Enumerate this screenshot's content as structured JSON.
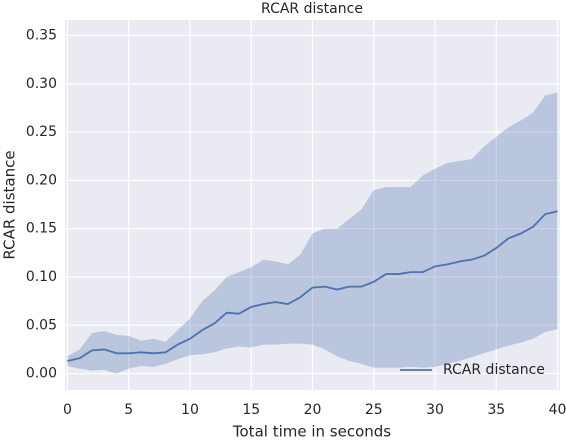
{
  "chart_data": {
    "type": "line",
    "title": "RCAR distance",
    "x_label": "Total time in seconds",
    "y_label": "RCAR distance",
    "x": [
      0,
      1,
      2,
      3,
      4,
      5,
      6,
      7,
      8,
      9,
      10,
      11,
      12,
      13,
      14,
      15,
      16,
      17,
      18,
      19,
      20,
      21,
      22,
      23,
      24,
      25,
      26,
      27,
      28,
      29,
      30,
      31,
      32,
      33,
      34,
      35,
      36,
      37,
      38,
      39,
      40
    ],
    "series": [
      {
        "name": "RCAR distance",
        "color": "#4c72b0",
        "values": [
          0.013,
          0.016,
          0.024,
          0.025,
          0.021,
          0.021,
          0.022,
          0.021,
          0.022,
          0.03,
          0.036,
          0.045,
          0.052,
          0.063,
          0.062,
          0.069,
          0.072,
          0.074,
          0.072,
          0.079,
          0.089,
          0.09,
          0.087,
          0.09,
          0.09,
          0.095,
          0.103,
          0.103,
          0.105,
          0.105,
          0.111,
          0.113,
          0.116,
          0.118,
          0.122,
          0.13,
          0.14,
          0.145,
          0.152,
          0.165,
          0.168
        ],
        "upper": [
          0.018,
          0.025,
          0.042,
          0.044,
          0.04,
          0.039,
          0.034,
          0.036,
          0.033,
          0.045,
          0.057,
          0.075,
          0.086,
          0.1,
          0.105,
          0.11,
          0.118,
          0.116,
          0.113,
          0.123,
          0.145,
          0.15,
          0.15,
          0.16,
          0.17,
          0.19,
          0.193,
          0.193,
          0.193,
          0.205,
          0.212,
          0.218,
          0.22,
          0.222,
          0.235,
          0.245,
          0.255,
          0.262,
          0.27,
          0.288,
          0.291
        ],
        "lower": [
          0.008,
          0.005,
          0.003,
          0.004,
          0.0,
          0.005,
          0.008,
          0.007,
          0.01,
          0.015,
          0.019,
          0.02,
          0.022,
          0.026,
          0.028,
          0.027,
          0.03,
          0.03,
          0.031,
          0.031,
          0.03,
          0.025,
          0.018,
          0.013,
          0.01,
          0.006,
          0.006,
          0.006,
          0.007,
          0.006,
          0.007,
          0.01,
          0.013,
          0.017,
          0.021,
          0.025,
          0.029,
          0.032,
          0.036,
          0.043,
          0.046
        ]
      }
    ],
    "xlim": [
      -0.2,
      40.2
    ],
    "xticks": [
      0,
      5,
      10,
      15,
      20,
      25,
      30,
      35,
      40
    ],
    "ylim": [
      -0.017,
      0.366
    ],
    "yticks": [
      {
        "value": 0,
        "label": "0.00"
      },
      {
        "value": 0.05,
        "label": "0.05"
      },
      {
        "value": 0.1,
        "label": "0.10"
      },
      {
        "value": 0.15,
        "label": "0.15"
      },
      {
        "value": 0.2,
        "label": "0.20"
      },
      {
        "value": 0.25,
        "label": "0.25"
      },
      {
        "value": 0.3,
        "label": "0.30"
      },
      {
        "value": 0.35,
        "label": "0.35"
      }
    ],
    "grid": true,
    "legend": "lower right"
  }
}
